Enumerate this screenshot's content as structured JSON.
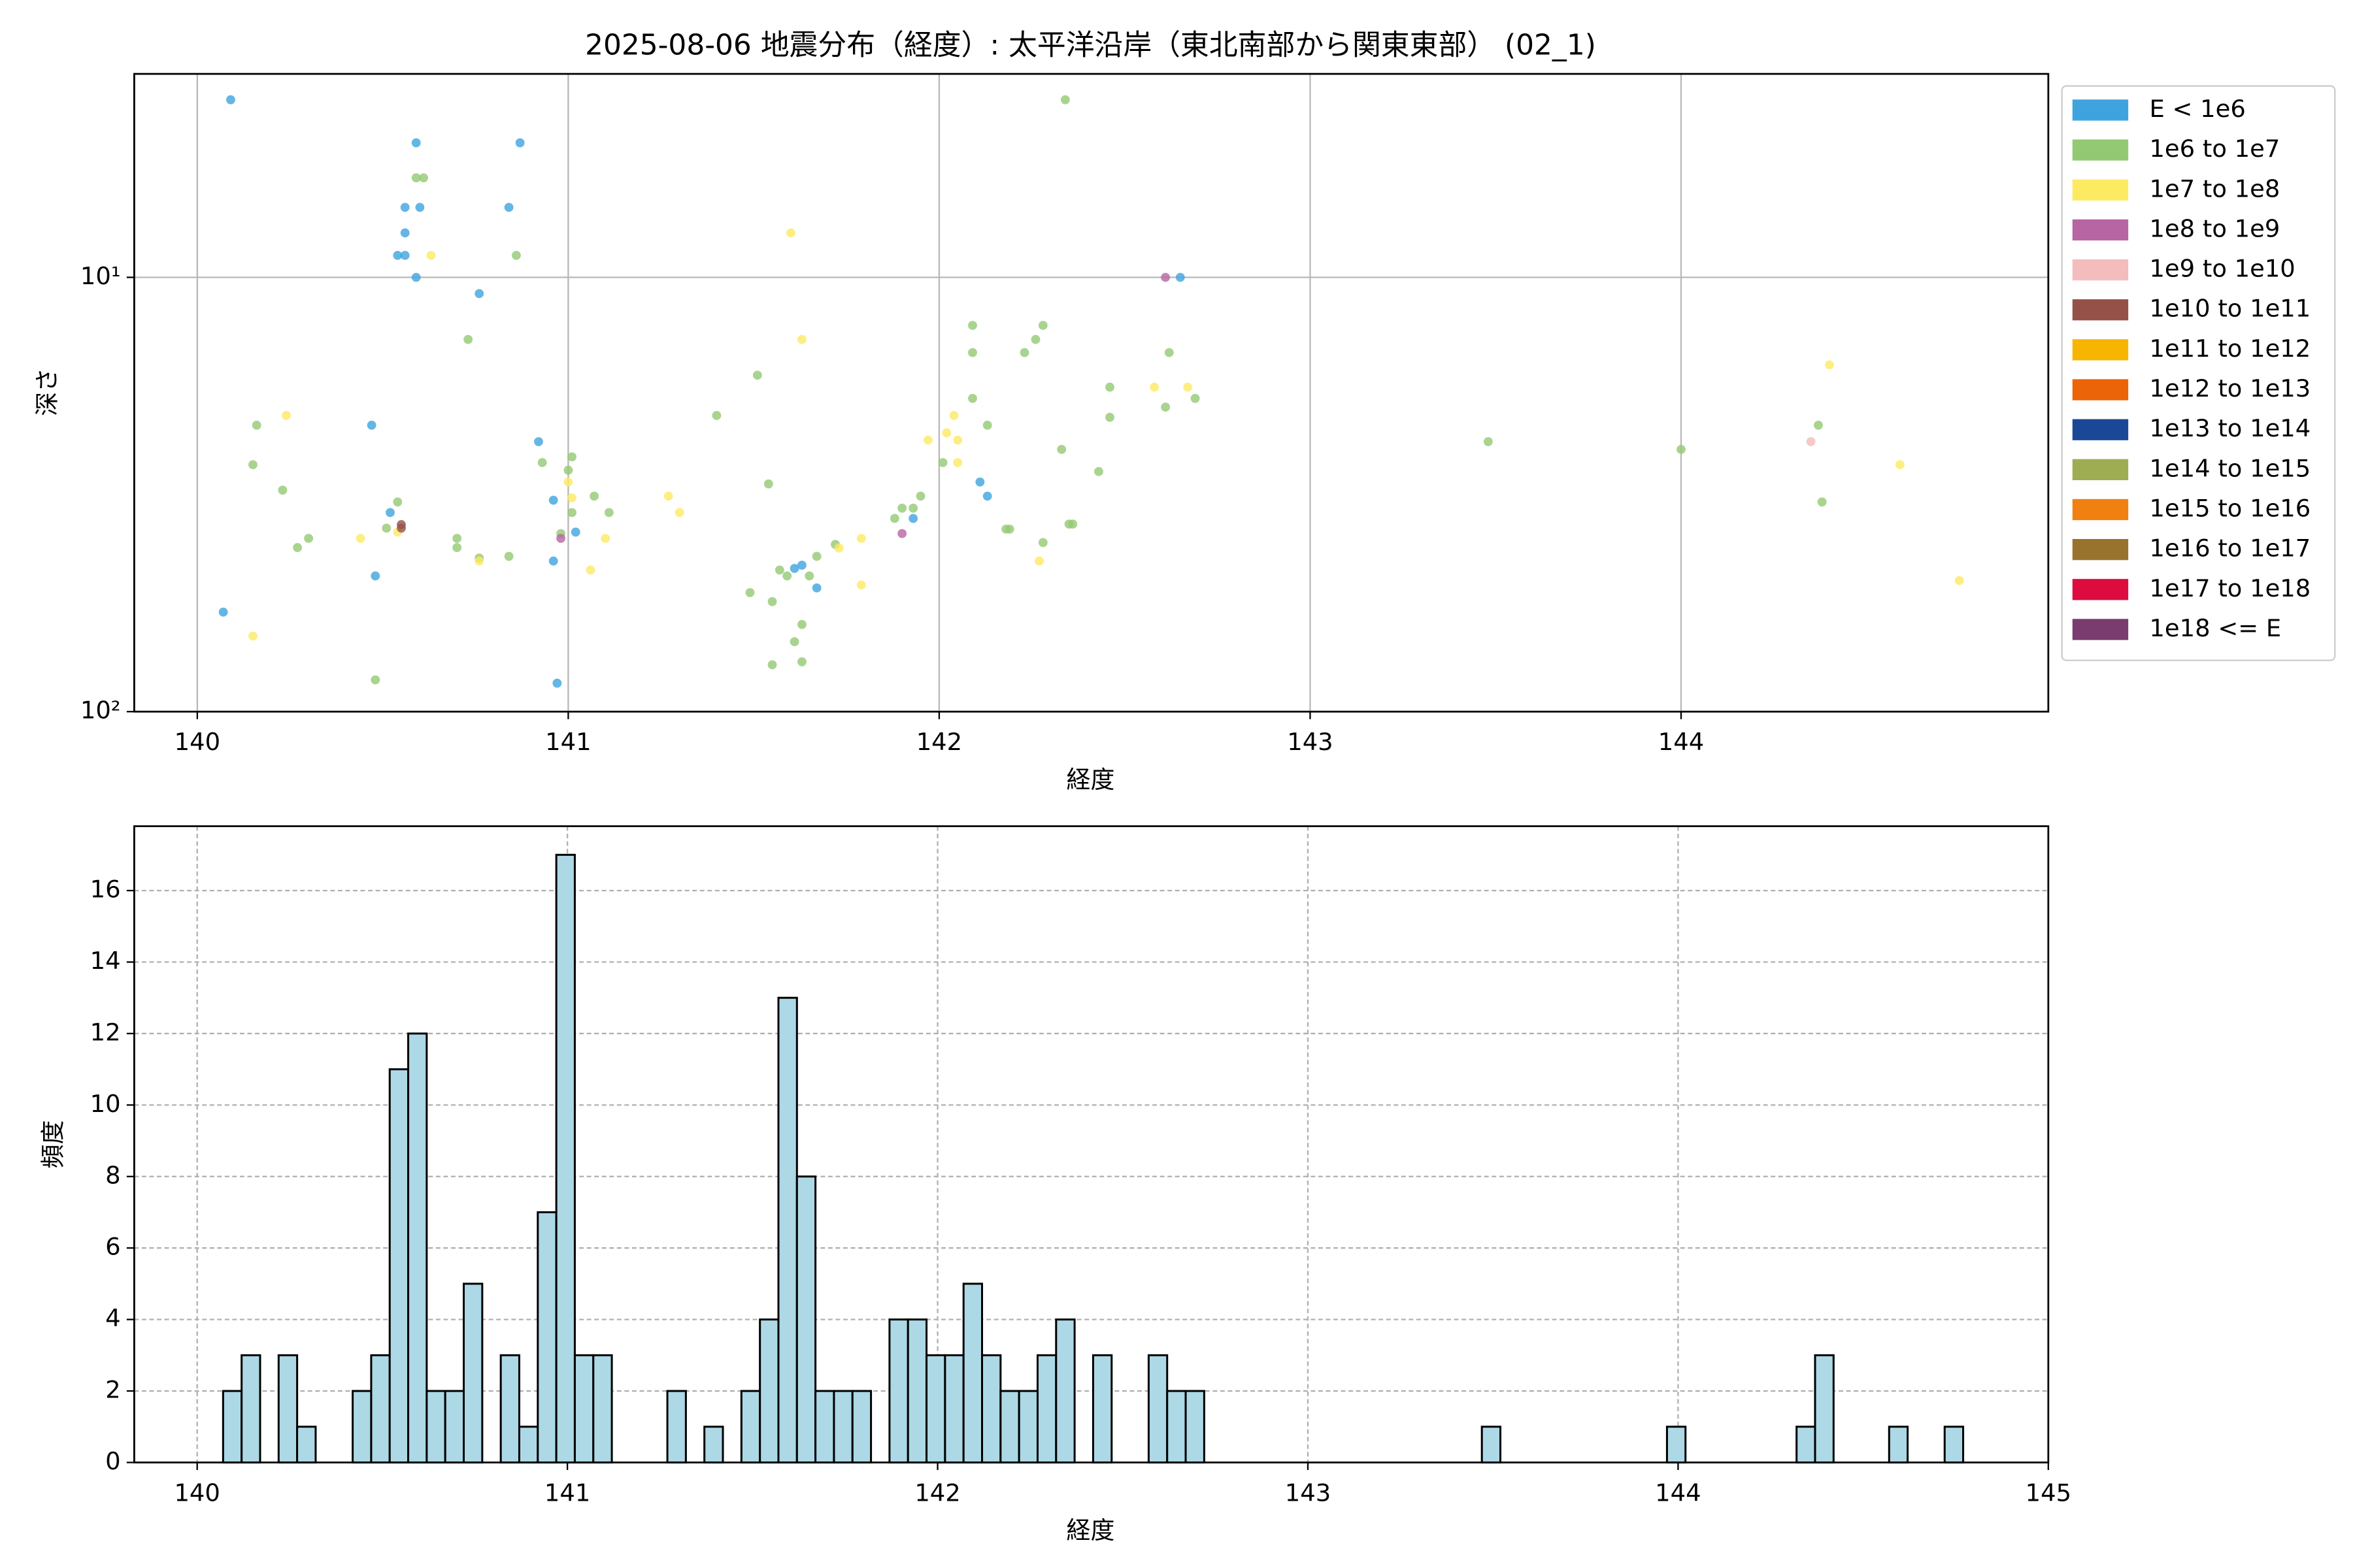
{
  "chart_data": [
    {
      "type": "scatter",
      "title": "2025-08-06 地震分布（経度）: 太平洋沿岸（東北南部から関東東部） (02_1)",
      "xlabel": "経度",
      "ylabel": "深さ",
      "xlim": [
        139.83,
        144.99
      ],
      "xticks": [
        140,
        141,
        142,
        143,
        144
      ],
      "yscale": "log",
      "y_inverted": true,
      "ylim": [
        3.4,
        100
      ],
      "yticks": [
        {
          "value": 10,
          "label": "10¹"
        },
        {
          "value": 100,
          "label": "10²"
        }
      ],
      "grid": "solid",
      "legend": "outside upper right",
      "series": [
        {
          "name": "E < 1e6",
          "color": "#3fa4de",
          "x": [
            140.09,
            140.59,
            140.87,
            140.56,
            140.6,
            140.84,
            140.56,
            140.56,
            140.54,
            140.59,
            140.76,
            142.65,
            140.47,
            140.92,
            140.52,
            140.96,
            141.02,
            140.96,
            140.48,
            140.07,
            140.97,
            142.11,
            142.13,
            141.93,
            141.61,
            141.63,
            141.67
          ],
          "y": [
            3.9,
            4.9,
            4.9,
            6.9,
            6.9,
            6.9,
            7.9,
            8.9,
            8.9,
            10,
            10.9,
            10,
            21.9,
            23.9,
            34.8,
            32.6,
            38.6,
            45,
            48.7,
            59,
            86,
            29.6,
            31.9,
            35.9,
            46.8,
            46,
            51.9
          ]
        },
        {
          "name": "1e6 to 1e7",
          "color": "#93c973",
          "x": [
            142.34,
            140.59,
            140.61,
            140.86,
            140.73,
            140.16,
            140.15,
            140.23,
            140.27,
            140.3,
            140.54,
            140.51,
            140.7,
            140.7,
            140.76,
            140.84,
            140.48,
            140.93,
            141.01,
            141.0,
            141.07,
            141.11,
            140.98,
            141.01,
            141.4,
            141.51,
            141.54,
            141.49,
            141.55,
            141.57,
            141.59,
            141.65,
            141.67,
            141.72,
            141.63,
            141.61,
            141.55,
            141.63,
            141.88,
            141.9,
            141.93,
            141.95,
            142.01,
            142.09,
            142.09,
            142.09,
            142.13,
            142.18,
            142.19,
            142.23,
            142.26,
            142.28,
            142.28,
            142.33,
            142.35,
            142.36,
            142.43,
            142.46,
            142.46,
            142.61,
            142.62,
            142.69,
            143.48,
            144.0,
            144.37,
            144.38
          ],
          "y": [
            3.9,
            5.9,
            5.9,
            8.9,
            13.9,
            21.9,
            27,
            30.9,
            41.9,
            39.9,
            32.9,
            37.8,
            39.9,
            41.9,
            44.3,
            43.9,
            84.5,
            26.7,
            25.9,
            27.8,
            31.9,
            34.8,
            38.9,
            34.8,
            20.8,
            16.8,
            29.9,
            53.2,
            55.8,
            47.2,
            48.7,
            48.7,
            43.9,
            41.2,
            63,
            69,
            78,
            76.8,
            35.9,
            34,
            34,
            31.9,
            26.7,
            19,
            12.9,
            14.9,
            21.9,
            38,
            38,
            14.9,
            13.9,
            12.9,
            40.8,
            24.9,
            37,
            37,
            28,
            17.9,
            21,
            19.9,
            14.9,
            19,
            23.9,
            24.9,
            21.9,
            32.9
          ]
        },
        {
          "name": "1e7 to 1e8",
          "color": "#fcea63",
          "x": [
            140.24,
            140.15,
            140.44,
            140.54,
            140.63,
            140.76,
            141.0,
            141.01,
            141.06,
            141.1,
            141.27,
            141.3,
            141.6,
            141.63,
            141.73,
            141.79,
            141.79,
            141.97,
            142.04,
            142.02,
            142.05,
            142.05,
            142.27,
            142.58,
            142.67,
            144.4,
            144.59,
            144.75
          ],
          "y": [
            20.8,
            67,
            39.9,
            38.6,
            8.9,
            45,
            29.6,
            32.2,
            47.2,
            39.9,
            31.9,
            34.8,
            7.9,
            13.9,
            42,
            39.9,
            51.1,
            23.7,
            20.8,
            22.8,
            23.7,
            26.7,
            45,
            17.9,
            17.9,
            15.9,
            27,
            49.9
          ]
        },
        {
          "name": "1e8 to 1e9",
          "color": "#b865a3",
          "x": [
            142.61,
            141.9,
            140.98
          ],
          "y": [
            10,
            38.9,
            39.9
          ]
        },
        {
          "name": "1e9 to 1e10",
          "color": "#f4bcbc",
          "x": [
            144.35
          ],
          "y": [
            23.9
          ]
        },
        {
          "name": "1e10 to 1e11",
          "color": "#955148",
          "x": [
            140.55,
            140.55
          ],
          "y": [
            37.8,
            37.1
          ]
        },
        {
          "name": "1e11 to 1e12",
          "color": "#f7b500",
          "x": [],
          "y": []
        },
        {
          "name": "1e12 to 1e13",
          "color": "#ec6408",
          "x": [],
          "y": []
        },
        {
          "name": "1e13 to 1e14",
          "color": "#1b4896",
          "x": [],
          "y": []
        },
        {
          "name": "1e14 to 1e15",
          "color": "#9ead52",
          "x": [],
          "y": []
        },
        {
          "name": "1e15 to 1e16",
          "color": "#f08110",
          "x": [],
          "y": []
        },
        {
          "name": "1e16 to 1e17",
          "color": "#98732d",
          "x": [],
          "y": []
        },
        {
          "name": "1e17 to 1e18",
          "color": "#dc0c3e",
          "x": [],
          "y": []
        },
        {
          "name": "1e18 <= E",
          "color": "#7a3b6e",
          "x": [],
          "y": []
        }
      ]
    },
    {
      "type": "histogram",
      "xlabel": "経度",
      "ylabel": "頻度",
      "xlim": [
        139.83,
        145.0
      ],
      "xticks": [
        140,
        141,
        142,
        143,
        144,
        145
      ],
      "ylim": [
        0,
        17.8
      ],
      "yticks": [
        0,
        2,
        4,
        6,
        8,
        10,
        12,
        14,
        16
      ],
      "grid": "dashed",
      "color": "#add8e6",
      "edgecolor": "#000000",
      "bins": [
        140.07,
        140.12,
        140.17,
        140.22,
        140.27,
        140.32,
        140.37,
        140.42,
        140.47,
        140.52,
        140.57,
        140.62,
        140.67,
        140.72,
        140.77,
        140.82,
        140.87,
        140.92,
        140.97,
        141.02,
        141.07,
        141.12,
        141.17,
        141.22,
        141.27,
        141.32,
        141.37,
        141.42,
        141.47,
        141.52,
        141.57,
        141.62,
        141.67,
        141.72,
        141.77,
        141.82,
        141.87,
        141.92,
        141.97,
        142.02,
        142.07,
        142.12,
        142.17,
        142.22,
        142.27,
        142.32,
        142.37,
        142.42,
        142.47,
        142.52,
        142.57,
        142.62,
        142.67,
        142.72,
        142.77,
        142.82,
        142.87,
        142.92,
        142.97,
        143.02,
        143.07,
        143.12,
        143.17,
        143.22,
        143.27,
        143.32,
        143.37,
        143.42,
        143.47,
        143.52,
        143.57,
        143.62,
        143.67,
        143.72,
        143.77,
        143.82,
        143.87,
        143.92,
        143.97,
        144.02,
        144.07,
        144.12,
        144.17,
        144.22,
        144.27,
        144.32,
        144.37,
        144.42,
        144.47,
        144.52,
        144.57,
        144.62,
        144.67,
        144.72,
        144.77
      ],
      "counts": [
        2,
        3,
        0,
        3,
        1,
        0,
        0,
        2,
        3,
        11,
        12,
        2,
        2,
        5,
        0,
        3,
        1,
        7,
        17,
        3,
        3,
        0,
        0,
        0,
        2,
        0,
        1,
        0,
        2,
        4,
        13,
        8,
        2,
        2,
        2,
        0,
        4,
        4,
        3,
        3,
        5,
        3,
        2,
        2,
        3,
        4,
        0,
        3,
        0,
        0,
        3,
        2,
        2,
        0,
        0,
        0,
        0,
        0,
        0,
        0,
        0,
        0,
        0,
        0,
        0,
        0,
        0,
        0,
        1,
        0,
        0,
        0,
        0,
        0,
        0,
        0,
        0,
        0,
        1,
        0,
        0,
        0,
        0,
        0,
        0,
        1,
        3,
        0,
        0,
        0,
        1,
        0,
        0,
        1
      ]
    }
  ]
}
